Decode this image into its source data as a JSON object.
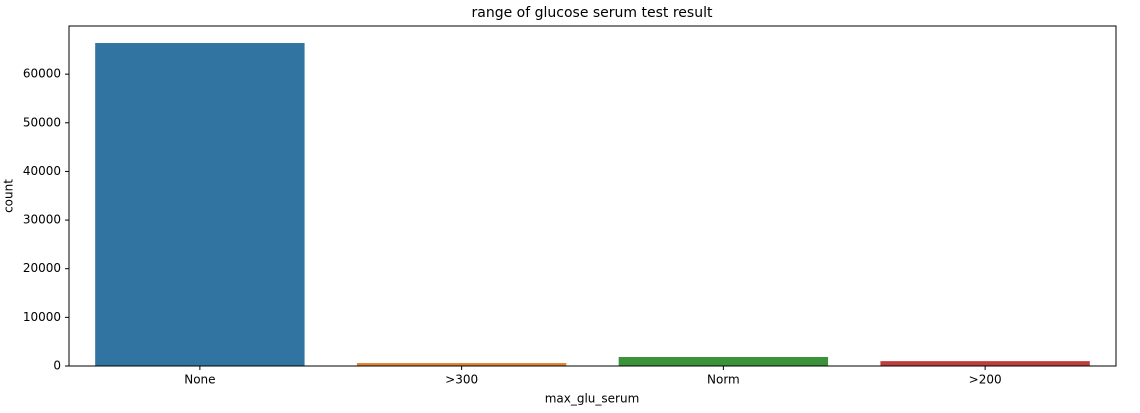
{
  "chart_data": {
    "type": "bar",
    "title": "range of glucose serum test result",
    "x_label": "max_glu_serum",
    "y_label": "count",
    "categories": [
      "None",
      ">300",
      "Norm",
      ">200"
    ],
    "values": [
      66400,
      600,
      1850,
      1000
    ],
    "colors": [
      "#3274a1",
      "#e1812c",
      "#3a923a",
      "#c03d3e"
    ],
    "ylim": [
      0,
      69900
    ],
    "yticks": [
      0,
      10000,
      20000,
      30000,
      40000,
      50000,
      60000
    ],
    "grid": false
  }
}
